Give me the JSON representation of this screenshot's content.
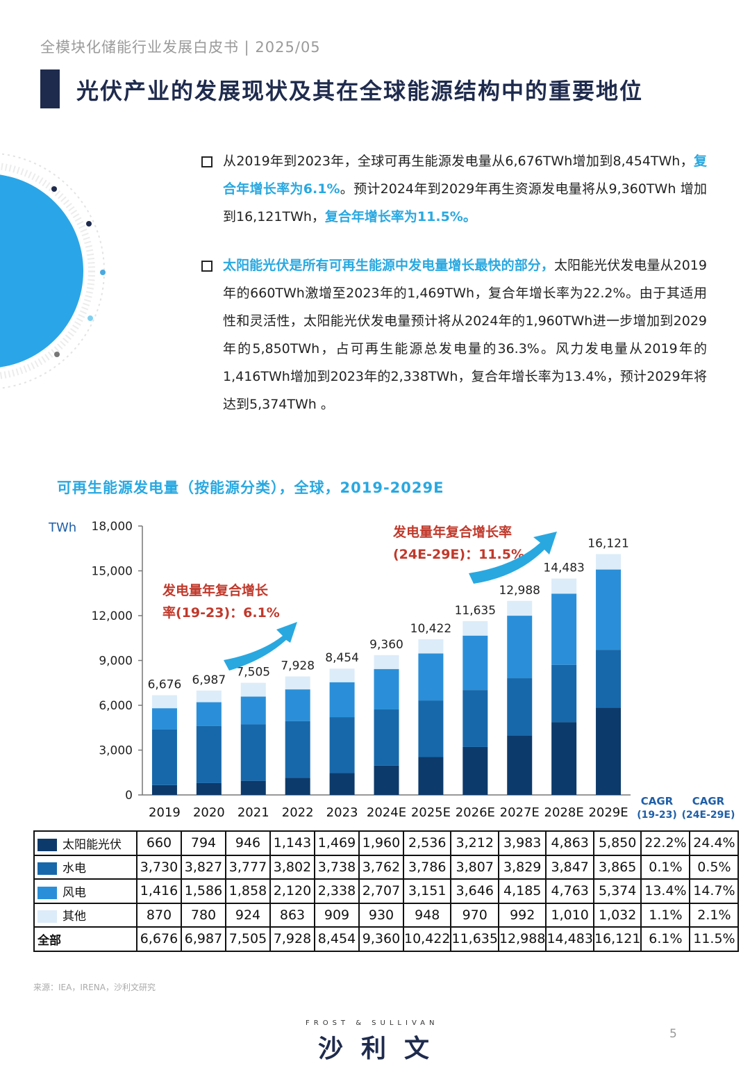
{
  "header": "全模块化储能行业发展白皮书 | 2025/05",
  "title": "光伏产业的发展现状及其在全球能源结构中的重要地位",
  "bullet1": {
    "t1": "从2019年到2023年，全球可再生能源发电量从6,676TWh增加到8,454TWh，",
    "h1": "复合年增长率为6.1%",
    "t2": "。预计2024年到2029年再生资源发电量将从9,360TWh 增加到16,121TWh，",
    "h2": "复合年增长率为11.5%。"
  },
  "bullet2": {
    "h1": "太阳能光伏是所有可再生能源中发电量增长最快的部分，",
    "t1": "太阳能光伏发电量从2019年的660TWh激增至2023年的1,469TWh，复合年增长率为22.2%。由于其适用性和灵活性，太阳能光伏发电量预计将从2024年的1,960TWh进一步增加到2029年的5,850TWh，占可再生能源总发电量的36.3%。风力发电量从2019年的1,416TWh增加到2023年的2,338TWh，复合年增长率为13.4%，预计2029年将达到5,374TWh 。"
  },
  "chart_title": "可再生能源发电量（按能源分类），全球，2019-2029E",
  "chart_data": {
    "type": "bar",
    "stacked": true,
    "unit": "TWh",
    "categories": [
      "2019",
      "2020",
      "2021",
      "2022",
      "2023",
      "2024E",
      "2025E",
      "2026E",
      "2027E",
      "2028E",
      "2029E"
    ],
    "ylim": [
      0,
      18000
    ],
    "yticks": [
      0,
      3000,
      6000,
      9000,
      12000,
      15000,
      18000
    ],
    "ytick_labels": [
      "0",
      "3,000",
      "6,000",
      "9,000",
      "12,000",
      "15,000",
      "18,000"
    ],
    "series": [
      {
        "name": "太阳能光伏",
        "color": "#0c3a6b",
        "values": [
          660,
          794,
          946,
          1143,
          1469,
          1960,
          2536,
          3212,
          3983,
          4863,
          5850
        ]
      },
      {
        "name": "水电",
        "color": "#1768aa",
        "values": [
          3730,
          3827,
          3777,
          3802,
          3738,
          3762,
          3786,
          3807,
          3829,
          3847,
          3865
        ]
      },
      {
        "name": "风电",
        "color": "#2a8fd8",
        "values": [
          1416,
          1586,
          1858,
          2120,
          2338,
          2707,
          3151,
          3646,
          4185,
          4763,
          5374
        ]
      },
      {
        "name": "其他",
        "color": "#dcecf9",
        "values": [
          870,
          780,
          924,
          863,
          909,
          930,
          948,
          970,
          992,
          1010,
          1032
        ]
      }
    ],
    "totals": [
      6676,
      6987,
      7505,
      7928,
      8454,
      9360,
      10422,
      11635,
      12988,
      14483,
      16121
    ],
    "total_labels": [
      "6,676",
      "6,987",
      "7,505",
      "7,928",
      "8,454",
      "9,360",
      "10,422",
      "11,635",
      "12,988",
      "14,483",
      "16,121"
    ],
    "annotation1": [
      "发电量年复合增长",
      "率(19-23)：6.1%"
    ],
    "annotation2": [
      "发电量年复合增长率",
      "(24E-29E)：11.5%"
    ],
    "cagr_headers": [
      [
        "CAGR",
        "(19-23)"
      ],
      [
        "CAGR",
        "(24E-29E)"
      ]
    ]
  },
  "table": {
    "rows": [
      {
        "label": "太阳能光伏",
        "color": "#0c3a6b",
        "values": [
          "660",
          "794",
          "946",
          "1,143",
          "1,469",
          "1,960",
          "2,536",
          "3,212",
          "3,983",
          "4,863",
          "5,850"
        ],
        "cagr1": "22.2%",
        "cagr2": "24.4%"
      },
      {
        "label": "水电",
        "color": "#1768aa",
        "values": [
          "3,730",
          "3,827",
          "3,777",
          "3,802",
          "3,738",
          "3,762",
          "3,786",
          "3,807",
          "3,829",
          "3,847",
          "3,865"
        ],
        "cagr1": "0.1%",
        "cagr2": "0.5%"
      },
      {
        "label": "风电",
        "color": "#2a8fd8",
        "values": [
          "1,416",
          "1,586",
          "1,858",
          "2,120",
          "2,338",
          "2,707",
          "3,151",
          "3,646",
          "4,185",
          "4,763",
          "5,374"
        ],
        "cagr1": "13.4%",
        "cagr2": "14.7%"
      },
      {
        "label": "其他",
        "color": "#dcecf9",
        "values": [
          "870",
          "780",
          "924",
          "863",
          "909",
          "930",
          "948",
          "970",
          "992",
          "1,010",
          "1,032"
        ],
        "cagr1": "1.1%",
        "cagr2": "2.1%"
      }
    ],
    "total": {
      "label": "全部",
      "values": [
        "6,676",
        "6,987",
        "7,505",
        "7,928",
        "8,454",
        "9,360",
        "10,422",
        "11,635",
        "12,988",
        "14,483",
        "16,121"
      ],
      "cagr1": "6.1%",
      "cagr2": "11.5%"
    }
  },
  "source": "来源：IEA，IRENA，沙利文研究",
  "logo_sub": "FROST & SULLIVAN",
  "logo": "沙利文",
  "page_number": "5"
}
